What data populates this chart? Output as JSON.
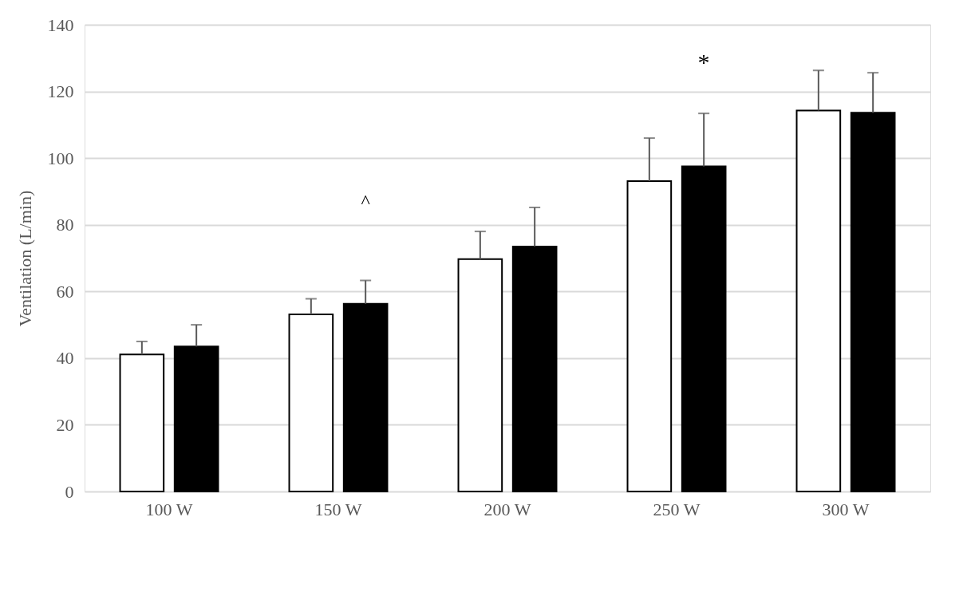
{
  "chart_data": {
    "type": "bar",
    "ylabel": "Ventilation (L/min)",
    "categories": [
      "100 W",
      "150 W",
      "200 W",
      "250 W",
      "300 W"
    ],
    "series": [
      {
        "color": "#ffffff",
        "values": [
          41.1,
          53.1,
          69.7,
          93.1,
          114.3
        ],
        "errors": [
          [
            41.1,
            45.0
          ],
          [
            53.1,
            57.8
          ],
          [
            69.7,
            78.0
          ],
          [
            93.1,
            106.0
          ],
          [
            114.3,
            126.3
          ]
        ]
      },
      {
        "color": "#000000",
        "values": [
          43.5,
          56.3,
          73.5,
          97.5,
          113.6
        ],
        "errors": [
          [
            43.5,
            50.0
          ],
          [
            56.3,
            63.3
          ],
          [
            73.5,
            85.2
          ],
          [
            97.5,
            113.4
          ],
          [
            113.6,
            125.6
          ]
        ]
      }
    ],
    "ylim": [
      0,
      140
    ],
    "yticks": [
      0,
      20,
      40,
      60,
      80,
      100,
      120,
      140
    ],
    "grid": "y",
    "legend": false,
    "annotations": [
      "^",
      "*"
    ]
  }
}
